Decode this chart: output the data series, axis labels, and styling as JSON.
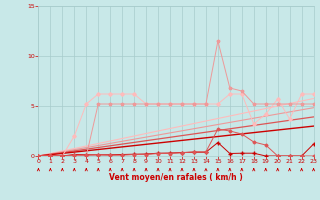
{
  "x": [
    0,
    1,
    2,
    3,
    4,
    5,
    6,
    7,
    8,
    9,
    10,
    11,
    12,
    13,
    14,
    15,
    16,
    17,
    18,
    19,
    20,
    21,
    22,
    23
  ],
  "line_straight1": [
    0,
    0.25,
    0.5,
    0.75,
    1.0,
    1.25,
    1.5,
    1.75,
    2.0,
    2.25,
    2.5,
    2.75,
    3.0,
    3.25,
    3.5,
    3.75,
    4.0,
    4.25,
    4.5,
    4.75,
    5.0,
    5.25,
    5.5,
    5.75
  ],
  "line_straight2": [
    0,
    0.21,
    0.42,
    0.63,
    0.84,
    1.05,
    1.26,
    1.47,
    1.68,
    1.89,
    2.1,
    2.31,
    2.52,
    2.73,
    2.94,
    3.15,
    3.36,
    3.57,
    3.78,
    3.99,
    4.2,
    4.41,
    4.62,
    4.83
  ],
  "line_straight3": [
    0,
    0.17,
    0.34,
    0.51,
    0.68,
    0.85,
    1.02,
    1.19,
    1.36,
    1.53,
    1.7,
    1.87,
    2.04,
    2.21,
    2.38,
    2.55,
    2.72,
    2.89,
    3.06,
    3.23,
    3.4,
    3.57,
    3.74,
    3.91
  ],
  "line_straight4": [
    0,
    0.13,
    0.26,
    0.39,
    0.52,
    0.65,
    0.78,
    0.91,
    1.04,
    1.17,
    1.3,
    1.43,
    1.56,
    1.69,
    1.82,
    1.95,
    2.08,
    2.21,
    2.34,
    2.47,
    2.6,
    2.73,
    2.86,
    2.99
  ],
  "line_jagged1": [
    0,
    0,
    0,
    2.0,
    5.2,
    6.2,
    6.2,
    6.2,
    6.2,
    5.2,
    5.2,
    5.2,
    5.2,
    5.2,
    5.2,
    5.2,
    6.2,
    6.2,
    3.2,
    4.2,
    5.7,
    3.7,
    6.2,
    6.2
  ],
  "line_jagged2": [
    0,
    0,
    0,
    0,
    0,
    5.2,
    5.2,
    5.2,
    5.2,
    5.2,
    5.2,
    5.2,
    5.2,
    5.2,
    5.2,
    11.5,
    6.8,
    6.5,
    5.2,
    5.2,
    5.2,
    5.2,
    5.2,
    5.2
  ],
  "line_near_zero1": [
    0,
    0,
    0,
    0.15,
    0.12,
    0.12,
    0.12,
    0.15,
    0.18,
    0.2,
    0.28,
    0.3,
    0.35,
    0.38,
    0.38,
    1.35,
    0.25,
    0.28,
    0.28,
    0.0,
    0.0,
    0.0,
    0.0,
    1.2
  ],
  "line_near_zero2": [
    0,
    0,
    0,
    0.08,
    0.08,
    0.12,
    0.08,
    0.08,
    0.15,
    0.15,
    0.25,
    0.25,
    0.32,
    0.42,
    0.42,
    2.7,
    2.5,
    2.2,
    1.4,
    1.1,
    0.0,
    0.0,
    0.0,
    0.0
  ],
  "ylim": [
    0,
    15
  ],
  "xlim": [
    0,
    23
  ],
  "yticks": [
    0,
    5,
    10,
    15
  ],
  "xticks": [
    0,
    1,
    2,
    3,
    4,
    5,
    6,
    7,
    8,
    9,
    10,
    11,
    12,
    13,
    14,
    15,
    16,
    17,
    18,
    19,
    20,
    21,
    22,
    23
  ],
  "xlabel": "Vent moyen/en rafales ( km/h )",
  "bg_color": "#c8e8e8",
  "grid_color": "#a8cccc",
  "c_dark": "#cc0000",
  "c_med": "#dd5555",
  "c_light": "#ee9999",
  "c_pale": "#ffbbbb"
}
